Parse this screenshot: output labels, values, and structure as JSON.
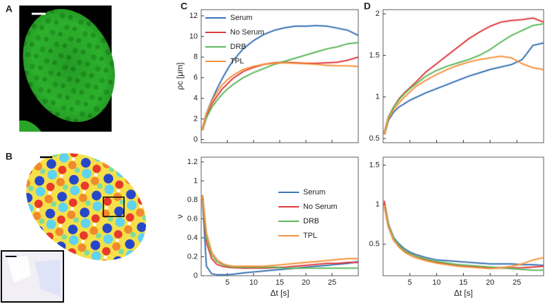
{
  "panel_labels": [
    "A",
    "B",
    "C",
    "D"
  ],
  "chart_data": [
    {
      "type": "line",
      "ylabel": "ρc [μm]",
      "legend": "upper left",
      "xtick_labels": false,
      "x": [
        0.2,
        1,
        2,
        3,
        4,
        5,
        6,
        8,
        10,
        12,
        14,
        16,
        18,
        20,
        22,
        24,
        26,
        28,
        30
      ],
      "xlim": [
        0,
        30
      ],
      "xticks": [
        5,
        10,
        15,
        20,
        25
      ],
      "ylim": [
        -0.3,
        12.6
      ],
      "yticks": [
        0,
        2,
        4,
        6,
        8,
        10,
        12
      ],
      "series": [
        {
          "name": "Serum",
          "color": "#3a73b5",
          "values": [
            0.9,
            2.5,
            3.8,
            4.9,
            5.9,
            6.8,
            7.6,
            8.8,
            9.6,
            10.2,
            10.6,
            10.85,
            11.0,
            11.0,
            11.05,
            11.0,
            10.8,
            10.6,
            10.1
          ]
        },
        {
          "name": "No Serum",
          "color": "#e03a3c",
          "values": [
            0.9,
            2.3,
            3.4,
            4.2,
            4.9,
            5.4,
            5.9,
            6.6,
            7.0,
            7.3,
            7.45,
            7.5,
            7.45,
            7.4,
            7.4,
            7.45,
            7.5,
            7.7,
            8.0
          ]
        },
        {
          "name": "DRB",
          "color": "#5cb85c",
          "values": [
            0.9,
            2.1,
            3.1,
            3.8,
            4.4,
            4.9,
            5.3,
            6.0,
            6.5,
            6.9,
            7.3,
            7.6,
            7.9,
            8.2,
            8.5,
            8.8,
            9.0,
            9.3,
            9.4
          ]
        },
        {
          "name": "TPL",
          "color": "#f7923a",
          "values": [
            0.9,
            2.5,
            3.7,
            4.6,
            5.3,
            5.8,
            6.2,
            6.8,
            7.1,
            7.3,
            7.4,
            7.45,
            7.4,
            7.35,
            7.3,
            7.2,
            7.15,
            7.15,
            7.1
          ]
        }
      ]
    },
    {
      "type": "line",
      "ylabel": "ν",
      "xlabel": "Δt [s]",
      "legend": "center right",
      "xtick_labels": true,
      "x": [
        0.2,
        1,
        2,
        3,
        4,
        5,
        6,
        8,
        10,
        12,
        14,
        16,
        18,
        20,
        22,
        24,
        26,
        28,
        30
      ],
      "xlim": [
        0,
        30
      ],
      "xticks": [
        5,
        10,
        15,
        20,
        25
      ],
      "ylim": [
        0,
        1.25
      ],
      "yticks": [
        0,
        0.2,
        0.4,
        0.6,
        0.8,
        1,
        1.2
      ],
      "series": [
        {
          "name": "Serum",
          "color": "#3a73b5",
          "values": [
            0.85,
            0.1,
            0.02,
            0.01,
            0.01,
            0.01,
            0.015,
            0.03,
            0.04,
            0.05,
            0.06,
            0.07,
            0.08,
            0.09,
            0.1,
            0.11,
            0.12,
            0.13,
            0.15
          ]
        },
        {
          "name": "No Serum",
          "color": "#e03a3c",
          "values": [
            0.85,
            0.35,
            0.18,
            0.12,
            0.1,
            0.09,
            0.085,
            0.08,
            0.08,
            0.08,
            0.085,
            0.09,
            0.1,
            0.11,
            0.12,
            0.13,
            0.13,
            0.14,
            0.14
          ]
        },
        {
          "name": "DRB",
          "color": "#5cb85c",
          "values": [
            0.85,
            0.4,
            0.22,
            0.15,
            0.12,
            0.1,
            0.09,
            0.09,
            0.09,
            0.09,
            0.09,
            0.08,
            0.08,
            0.08,
            0.08,
            0.08,
            0.08,
            0.08,
            0.08
          ]
        },
        {
          "name": "TPL",
          "color": "#f7923a",
          "values": [
            0.85,
            0.45,
            0.25,
            0.17,
            0.13,
            0.11,
            0.1,
            0.1,
            0.1,
            0.1,
            0.11,
            0.12,
            0.13,
            0.14,
            0.15,
            0.16,
            0.17,
            0.18,
            0.18
          ]
        }
      ]
    },
    {
      "type": "line",
      "xtick_labels": false,
      "x": [
        0.2,
        1,
        2,
        3,
        4,
        5,
        6,
        8,
        10,
        12,
        14,
        16,
        18,
        20,
        22,
        24,
        26,
        28,
        30
      ],
      "xlim": [
        0,
        30
      ],
      "xticks": [
        5,
        10,
        15,
        20,
        25
      ],
      "ylim": [
        0.45,
        2.05
      ],
      "yticks": [
        0.5,
        1,
        1.5,
        2
      ],
      "series": [
        {
          "color": "#3a73b5",
          "values": [
            0.55,
            0.72,
            0.82,
            0.88,
            0.92,
            0.96,
            0.99,
            1.05,
            1.1,
            1.15,
            1.2,
            1.25,
            1.29,
            1.33,
            1.36,
            1.39,
            1.45,
            1.62,
            1.65
          ]
        },
        {
          "color": "#e03a3c",
          "values": [
            0.55,
            0.75,
            0.88,
            0.98,
            1.05,
            1.11,
            1.17,
            1.3,
            1.4,
            1.5,
            1.6,
            1.7,
            1.78,
            1.85,
            1.9,
            1.92,
            1.93,
            1.95,
            1.9
          ]
        },
        {
          "color": "#5cb85c",
          "values": [
            0.55,
            0.76,
            0.88,
            0.97,
            1.04,
            1.1,
            1.15,
            1.25,
            1.32,
            1.37,
            1.41,
            1.45,
            1.5,
            1.57,
            1.66,
            1.74,
            1.8,
            1.86,
            1.88
          ]
        },
        {
          "color": "#f7923a",
          "values": [
            0.55,
            0.74,
            0.85,
            0.93,
            1.0,
            1.06,
            1.12,
            1.2,
            1.27,
            1.33,
            1.38,
            1.42,
            1.45,
            1.47,
            1.49,
            1.47,
            1.4,
            1.35,
            1.33
          ]
        }
      ]
    },
    {
      "type": "line",
      "xlabel": "Δt [s]",
      "xtick_labels": true,
      "x": [
        0.2,
        1,
        2,
        3,
        4,
        5,
        6,
        8,
        10,
        12,
        14,
        16,
        18,
        20,
        22,
        24,
        26,
        28,
        30
      ],
      "xlim": [
        0,
        30
      ],
      "xticks": [
        5,
        10,
        15,
        20,
        25
      ],
      "ylim": [
        0.1,
        1.6
      ],
      "yticks": [
        0.5,
        1,
        1.5
      ],
      "series": [
        {
          "color": "#3a73b5",
          "values": [
            1.02,
            0.75,
            0.58,
            0.5,
            0.44,
            0.4,
            0.37,
            0.33,
            0.3,
            0.29,
            0.28,
            0.27,
            0.26,
            0.25,
            0.25,
            0.25,
            0.24,
            0.24,
            0.23
          ]
        },
        {
          "color": "#e03a3c",
          "values": [
            1.05,
            0.72,
            0.55,
            0.47,
            0.41,
            0.38,
            0.35,
            0.3,
            0.27,
            0.25,
            0.23,
            0.22,
            0.21,
            0.2,
            0.2,
            0.2,
            0.2,
            0.21,
            0.22
          ]
        },
        {
          "color": "#5cb85c",
          "values": [
            1.0,
            0.74,
            0.57,
            0.48,
            0.42,
            0.38,
            0.35,
            0.31,
            0.28,
            0.26,
            0.24,
            0.23,
            0.22,
            0.21,
            0.2,
            0.19,
            0.18,
            0.17,
            0.17
          ]
        },
        {
          "color": "#f7923a",
          "values": [
            1.0,
            0.72,
            0.55,
            0.46,
            0.4,
            0.36,
            0.33,
            0.29,
            0.26,
            0.24,
            0.22,
            0.21,
            0.2,
            0.19,
            0.2,
            0.22,
            0.25,
            0.3,
            0.33
          ]
        }
      ]
    }
  ]
}
